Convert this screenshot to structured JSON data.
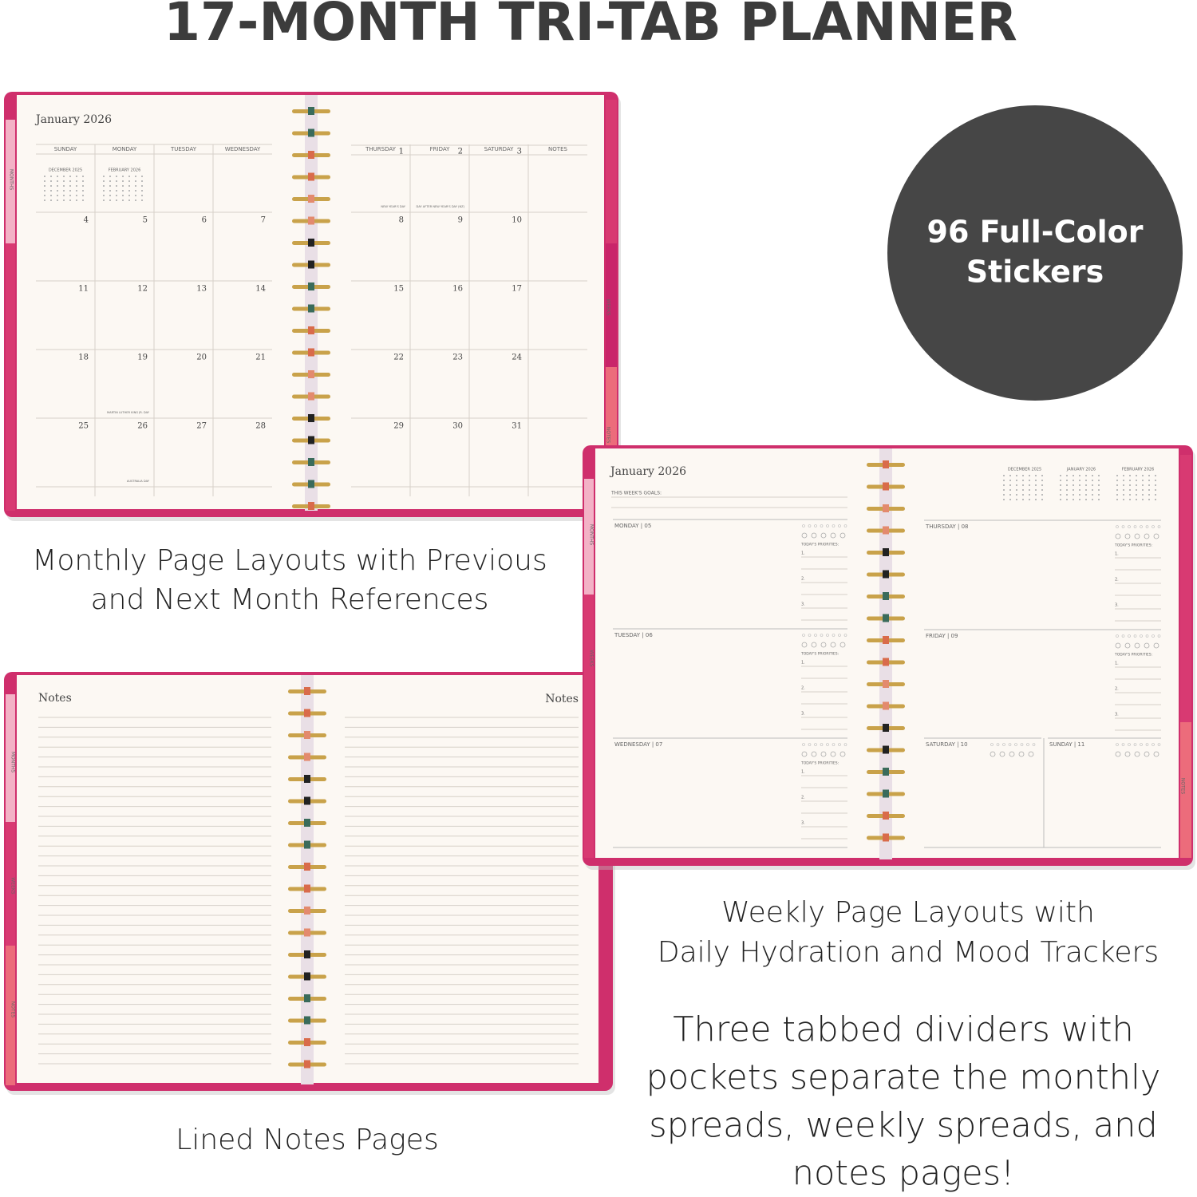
{
  "title": "17-MONTH TRI-TAB PLANNER",
  "badge": [
    "96 Full-Color",
    "Stickers"
  ],
  "captions": {
    "monthly": [
      "Monthly Page Layouts with Previous",
      "and Next Month References"
    ],
    "weekly": [
      "Weekly Page Layouts with",
      "Daily Hydration and Mood Trackers"
    ],
    "notes": "Lined Notes Pages",
    "dividers": [
      "Three tabbed dividers with",
      "pockets separate the monthly",
      "spreads, weekly spreads, and",
      "notes pages!"
    ]
  },
  "tabs": [
    "MONTHS",
    "WEEKS",
    "NOTES"
  ],
  "monthly": {
    "title": "January 2026",
    "headers": [
      "SUNDAY",
      "MONDAY",
      "TUESDAY",
      "WEDNESDAY",
      "THURSDAY",
      "FRIDAY",
      "SATURDAY",
      "NOTES"
    ],
    "mini": [
      "DECEMBER 2025",
      "FEBRUARY 2026"
    ],
    "weeks": [
      [
        null,
        null,
        null,
        null,
        1,
        2,
        3
      ],
      [
        4,
        5,
        6,
        7,
        8,
        9,
        10
      ],
      [
        11,
        12,
        13,
        14,
        15,
        16,
        17
      ],
      [
        18,
        19,
        20,
        21,
        22,
        23,
        24
      ],
      [
        25,
        26,
        27,
        28,
        29,
        30,
        31
      ]
    ],
    "holidays": [
      [
        null,
        null,
        null,
        null,
        "NEW YEAR'S DAY",
        "DAY AFTER NEW YEAR'S DAY (NZ)",
        null
      ],
      [
        null,
        null,
        null,
        null,
        null,
        null,
        null
      ],
      [
        null,
        null,
        null,
        null,
        null,
        null,
        null
      ],
      [
        null,
        "MARTIN LUTHER KING JR. DAY",
        null,
        null,
        null,
        null,
        null
      ],
      [
        null,
        "AUSTRALIA DAY",
        null,
        null,
        null,
        null,
        null
      ]
    ]
  },
  "weekly": {
    "title": "January 2026",
    "goals": "THIS WEEK'S GOALS:",
    "mini": [
      "DECEMBER 2025",
      "JANUARY 2026",
      "FEBRUARY 2026"
    ],
    "days": [
      "MONDAY | 05",
      "TUESDAY | 06",
      "WEDNESDAY | 07",
      "THURSDAY | 08",
      "FRIDAY | 09",
      "SATURDAY | 10",
      "SUNDAY | 11"
    ],
    "priorities": "TODAY'S PRIORITIES:",
    "priority_numbers": [
      "1.",
      "2.",
      "3."
    ]
  },
  "notes": {
    "left": "Notes",
    "right": "Notes"
  }
}
